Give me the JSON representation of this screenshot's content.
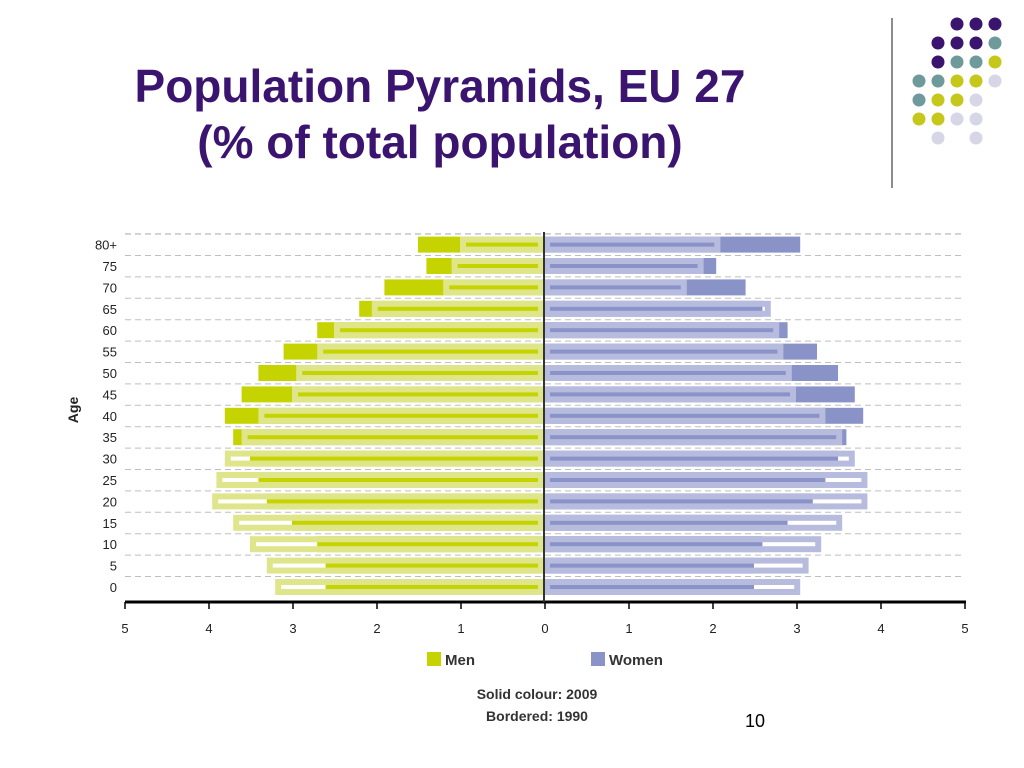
{
  "slide": {
    "title_line1": "Population Pyramids, EU 27",
    "title_line2": "(% of total population)",
    "page_number": "10"
  },
  "colors": {
    "title": "#3b1470",
    "men": "#c5d400",
    "men_1990": "#dfe58a",
    "women": "#8a93c7",
    "women_1990": "#b7bcdf",
    "accent_purple": "#3b1470",
    "accent_teal": "#6f9a9c",
    "accent_olive": "#c5c81a",
    "accent_lavender": "#d7d6e6"
  },
  "chart_data": {
    "type": "bar",
    "orientation": "horizontal-pyramid",
    "ylabel": "Age",
    "categories": [
      "0",
      "5",
      "10",
      "15",
      "20",
      "25",
      "30",
      "35",
      "40",
      "45",
      "50",
      "55",
      "60",
      "65",
      "70",
      "75",
      "80+"
    ],
    "y_tick_labels": [
      "0",
      "5",
      "10",
      "15",
      "20",
      "25",
      "30",
      "35",
      "40",
      "45",
      "50",
      "55",
      "60",
      "65",
      "70",
      "75",
      "80+"
    ],
    "x_tick_labels": [
      "5",
      "4",
      "3",
      "2",
      "1",
      "0",
      "1",
      "2",
      "3",
      "4",
      "5"
    ],
    "xlim": [
      -5,
      5
    ],
    "grid": "dashed horizontal",
    "series": [
      {
        "name": "Men",
        "year": "2009",
        "style": "solid",
        "values": [
          2.6,
          2.6,
          2.7,
          3.0,
          3.3,
          3.4,
          3.5,
          3.7,
          3.8,
          3.6,
          3.4,
          3.1,
          2.7,
          2.2,
          1.9,
          1.4,
          1.5
        ]
      },
      {
        "name": "Women",
        "year": "2009",
        "style": "solid",
        "values": [
          2.5,
          2.5,
          2.6,
          2.9,
          3.2,
          3.35,
          3.5,
          3.6,
          3.8,
          3.7,
          3.5,
          3.25,
          2.9,
          2.6,
          2.4,
          2.05,
          3.05
        ]
      },
      {
        "name": "Men",
        "year": "1990",
        "style": "bordered",
        "values": [
          3.2,
          3.3,
          3.5,
          3.7,
          3.95,
          3.9,
          3.8,
          3.6,
          3.4,
          3.0,
          2.95,
          2.7,
          2.5,
          2.05,
          1.2,
          1.1,
          1.0
        ]
      },
      {
        "name": "Women",
        "year": "1990",
        "style": "bordered",
        "values": [
          3.05,
          3.15,
          3.3,
          3.55,
          3.85,
          3.85,
          3.7,
          3.55,
          3.35,
          3.0,
          2.95,
          2.85,
          2.8,
          2.7,
          1.7,
          1.9,
          2.1
        ]
      }
    ],
    "legend": {
      "placement": "bottom",
      "items": [
        "Men",
        "Women"
      ],
      "note_line1": "Solid colour: 2009",
      "note_line2": "Bordered: 1990"
    }
  }
}
